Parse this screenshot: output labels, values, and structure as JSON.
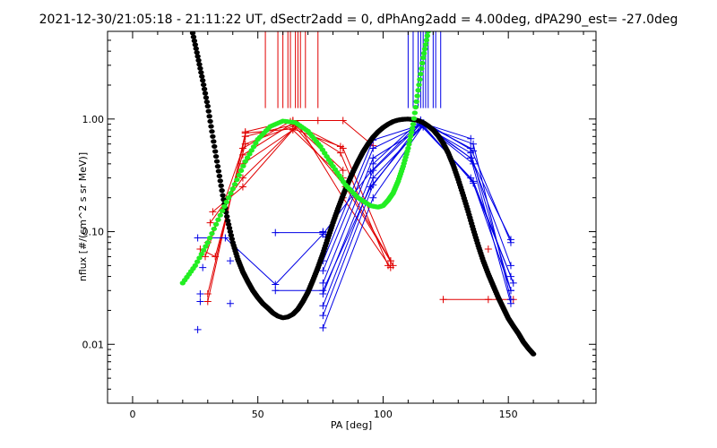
{
  "chart_data": {
    "type": "scatter",
    "title": "2021-12-30/21:05:18 - 21:11:22 UT, dSectr2add = 0, dPhAng2add = 4.00deg, dPA290_est= -27.0deg",
    "xlabel": "PA [deg]",
    "ylabel": "nflux [#/(cm^2 s sr MeV)]",
    "xlim": [
      -10,
      185
    ],
    "ylim": [
      0.003,
      6
    ],
    "yscale": "log",
    "xticks": [
      0,
      50,
      100,
      150
    ],
    "xtick_labels": [
      "0",
      "50",
      "100",
      "150"
    ],
    "yticks": [
      0.01,
      0.1,
      1.0
    ],
    "ytick_labels": [
      "0.01",
      "0.10",
      "1.00"
    ],
    "grid": false,
    "legend": "none",
    "colors": {
      "red": "#e00000",
      "blue": "#0000e6",
      "green": "#22ee22",
      "black": "#000000"
    },
    "red_series": [
      {
        "x": [
          30,
          45,
          65,
          84,
          103
        ],
        "y": [
          0.028,
          0.7,
          0.9,
          0.55,
          0.055
        ]
      },
      {
        "x": [
          29,
          44,
          63,
          83,
          102
        ],
        "y": [
          0.06,
          0.55,
          0.95,
          0.5,
          0.05
        ]
      },
      {
        "x": [
          30,
          44,
          64,
          84,
          103
        ],
        "y": [
          0.08,
          0.4,
          0.8,
          0.3,
          0.055
        ]
      },
      {
        "x": [
          31,
          44,
          65,
          85,
          104
        ],
        "y": [
          0.12,
          0.3,
          0.85,
          0.25,
          0.05
        ]
      },
      {
        "x": [
          32,
          44,
          66,
          84,
          103
        ],
        "y": [
          0.15,
          0.25,
          0.9,
          0.2,
          0.048
        ]
      },
      {
        "x": [
          30,
          45,
          64,
          83
        ],
        "y": [
          0.024,
          0.75,
          0.82,
          0.57
        ]
      },
      {
        "x": [
          44,
          64,
          84
        ],
        "y": [
          0.48,
          0.92,
          0.35
        ]
      },
      {
        "x": [
          45,
          64,
          74
        ],
        "y": [
          0.77,
          0.97,
          0.97
        ]
      },
      {
        "x": [
          64,
          84,
          96
        ],
        "y": [
          0.97,
          0.97,
          0.58
        ]
      },
      {
        "x": [
          27,
          33,
          45,
          65
        ],
        "y": [
          0.07,
          0.06,
          0.6,
          0.88
        ]
      },
      {
        "x": [
          124,
          142,
          152
        ],
        "y": [
          0.025,
          0.025,
          0.025
        ]
      }
    ],
    "red_points": [
      {
        "x": 142,
        "y": 0.07
      }
    ],
    "blue_series": [
      {
        "x": [
          26,
          37,
          57,
          76,
          95,
          115,
          135,
          151
        ],
        "y": [
          0.088,
          0.088,
          0.034,
          0.095,
          0.34,
          0.95,
          0.45,
          0.085
        ]
      },
      {
        "x": [
          57,
          76
        ],
        "y": [
          0.098,
          0.098
        ]
      },
      {
        "x": [
          57,
          76,
          95,
          116,
          135,
          151
        ],
        "y": [
          0.03,
          0.03,
          0.25,
          0.92,
          0.55,
          0.08
        ]
      },
      {
        "x": [
          76,
          96,
          116,
          136,
          151
        ],
        "y": [
          0.055,
          0.65,
          0.9,
          0.4,
          0.05
        ]
      },
      {
        "x": [
          76,
          96,
          115,
          135,
          151
        ],
        "y": [
          0.045,
          0.55,
          0.88,
          0.3,
          0.04
        ]
      },
      {
        "x": [
          76,
          96,
          116,
          136,
          152
        ],
        "y": [
          0.035,
          0.45,
          0.85,
          0.28,
          0.035
        ]
      },
      {
        "x": [
          76,
          96,
          115,
          135,
          151
        ],
        "y": [
          0.028,
          0.35,
          0.9,
          0.5,
          0.03
        ]
      },
      {
        "x": [
          76,
          96,
          116,
          136,
          151
        ],
        "y": [
          0.022,
          0.3,
          0.87,
          0.6,
          0.025
        ]
      },
      {
        "x": [
          76,
          96,
          115,
          135,
          151
        ],
        "y": [
          0.018,
          0.26,
          0.93,
          0.45,
          0.023
        ]
      },
      {
        "x": [
          76,
          96,
          116,
          136,
          151
        ],
        "y": [
          0.014,
          0.2,
          0.88,
          0.27,
          0.03
        ]
      },
      {
        "x": [
          115,
          135
        ],
        "y": [
          0.93,
          0.67
        ]
      },
      {
        "x": [
          96,
          115,
          136
        ],
        "y": [
          0.4,
          0.98,
          0.52
        ]
      }
    ],
    "blue_points": [
      {
        "x": 26,
        "y": 0.0135
      },
      {
        "x": 27,
        "y": 0.024
      },
      {
        "x": 27,
        "y": 0.028
      },
      {
        "x": 28,
        "y": 0.048
      },
      {
        "x": 39,
        "y": 0.023
      },
      {
        "x": 39,
        "y": 0.055
      },
      {
        "x": 76,
        "y": 0.1
      },
      {
        "x": 77,
        "y": 0.09
      }
    ],
    "red_ticks_x": [
      53,
      58,
      60,
      62,
      63,
      65,
      66,
      67,
      69,
      74
    ],
    "blue_ticks_x": [
      110,
      112,
      114,
      115,
      116,
      117,
      118,
      120,
      121,
      123
    ],
    "green_curve": {
      "x": [
        20,
        25,
        30,
        35,
        40,
        45,
        50,
        55,
        60,
        65,
        70,
        75,
        80,
        85,
        90,
        95,
        98,
        100,
        102,
        104,
        106,
        108,
        110,
        112,
        114,
        116,
        118
      ],
      "y": [
        0.035,
        0.05,
        0.08,
        0.14,
        0.24,
        0.42,
        0.66,
        0.86,
        0.96,
        0.93,
        0.78,
        0.57,
        0.38,
        0.26,
        0.2,
        0.17,
        0.165,
        0.17,
        0.19,
        0.22,
        0.28,
        0.38,
        0.55,
        0.9,
        1.8,
        3.5,
        6.0
      ]
    },
    "black_curve": {
      "x": [
        24,
        26,
        28,
        30,
        32,
        34,
        36,
        38,
        40,
        42,
        44,
        46,
        48,
        50,
        52,
        54,
        56,
        58,
        60,
        62,
        64,
        66,
        68,
        70,
        72,
        74,
        76,
        78,
        80,
        82,
        84,
        86,
        88,
        90,
        92,
        94,
        96,
        98,
        100,
        102,
        104,
        106,
        108,
        110,
        112,
        114,
        116,
        118,
        120,
        122,
        124,
        126,
        128,
        130,
        132,
        134,
        136,
        138,
        140,
        142,
        144,
        146,
        148,
        150,
        152,
        154,
        156,
        158,
        160
      ],
      "y": [
        5.8,
        3.6,
        2.2,
        1.3,
        0.7,
        0.38,
        0.21,
        0.125,
        0.08,
        0.057,
        0.044,
        0.036,
        0.03,
        0.026,
        0.023,
        0.021,
        0.019,
        0.0178,
        0.0172,
        0.0175,
        0.0185,
        0.0205,
        0.024,
        0.029,
        0.037,
        0.048,
        0.064,
        0.088,
        0.12,
        0.16,
        0.21,
        0.27,
        0.34,
        0.42,
        0.51,
        0.6,
        0.69,
        0.77,
        0.84,
        0.9,
        0.95,
        0.98,
        0.995,
        1.0,
        0.99,
        0.97,
        0.93,
        0.87,
        0.8,
        0.71,
        0.61,
        0.5,
        0.39,
        0.29,
        0.21,
        0.15,
        0.105,
        0.075,
        0.055,
        0.042,
        0.033,
        0.026,
        0.021,
        0.017,
        0.0145,
        0.0125,
        0.0105,
        0.0092,
        0.0082
      ]
    }
  }
}
